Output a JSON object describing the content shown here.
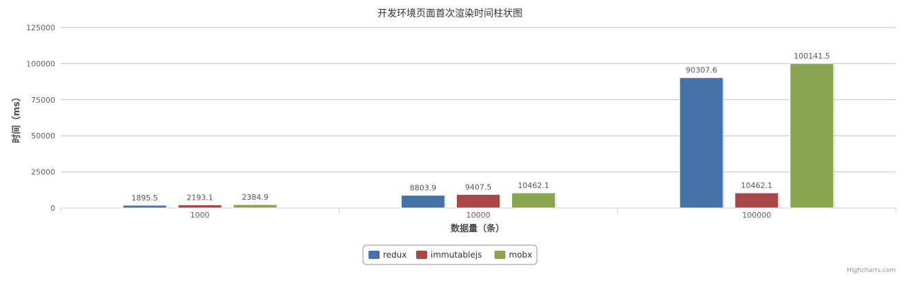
{
  "chart_data": {
    "type": "bar",
    "title": "开发环境页面首次渲染时间柱状图",
    "xlabel": "数据量（条）",
    "ylabel": "时间（ms）",
    "categories": [
      "1000",
      "10000",
      "100000"
    ],
    "series": [
      {
        "name": "redux",
        "color": "#4572a7",
        "values": [
          1895.5,
          8803.9,
          90307.6
        ]
      },
      {
        "name": "immutablejs",
        "color": "#aa4643",
        "values": [
          2193.1,
          9407.5,
          10462.1
        ]
      },
      {
        "name": "mobx",
        "color": "#89a54e",
        "values": [
          2384.9,
          10462.1,
          100141.5
        ]
      }
    ],
    "ylim": [
      0,
      125000
    ],
    "yticks": [
      0,
      25000,
      50000,
      75000,
      100000,
      125000
    ],
    "grid": true,
    "legend_position": "bottom-center",
    "credits": "Highcharts.com"
  }
}
